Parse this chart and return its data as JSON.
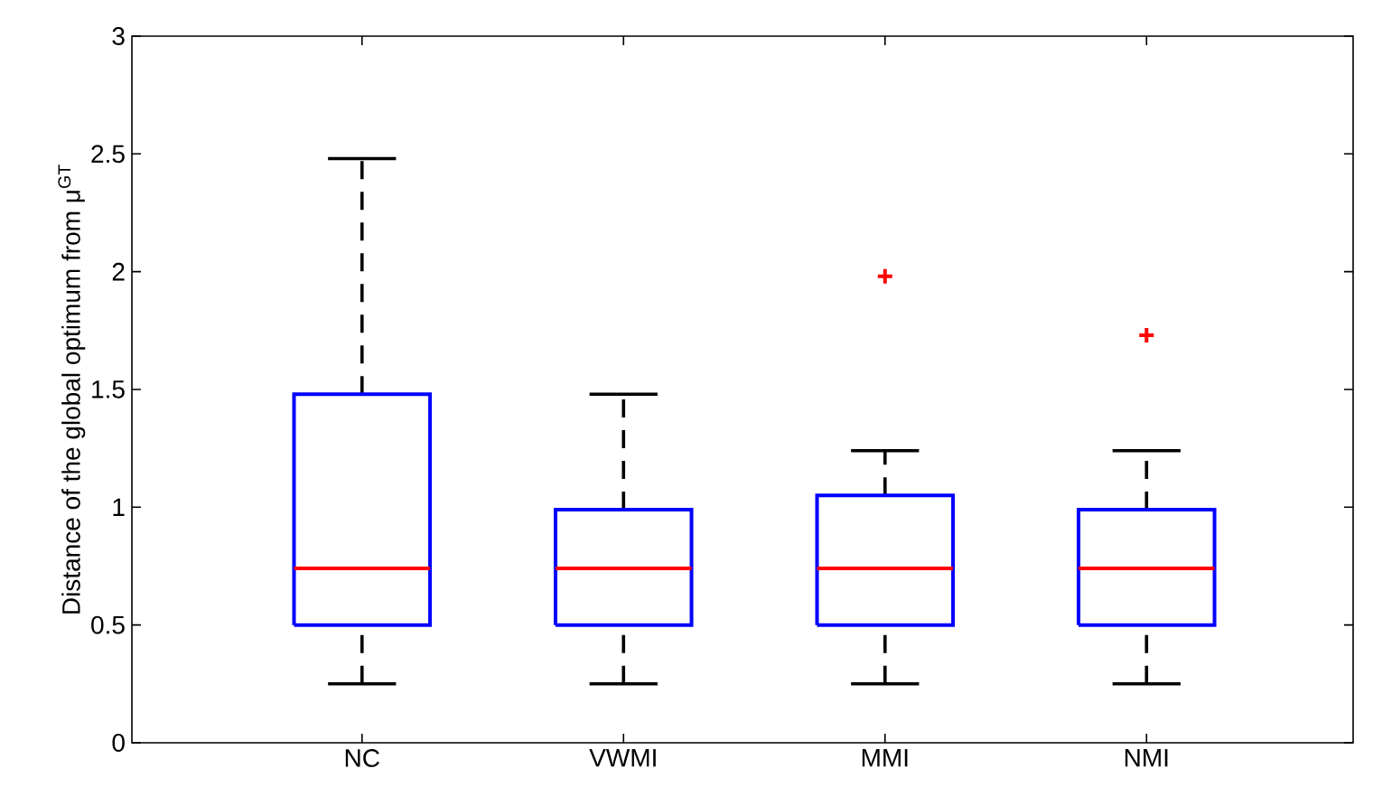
{
  "chart_data": {
    "type": "box",
    "ylabel": "Distance of the global optimum from μ$^{GT}$",
    "categories": [
      "NC",
      "VWMI",
      "MMI",
      "NMI"
    ],
    "series": [
      {
        "color": "#0000ff",
        "boxes": [
          {
            "low": 0.25,
            "q1": 0.5,
            "median": 0.74,
            "q3": 1.48,
            "high": 2.48
          },
          {
            "low": 0.25,
            "q1": 0.5,
            "median": 0.74,
            "q3": 0.99,
            "high": 1.48
          },
          {
            "low": 0.25,
            "q1": 0.5,
            "median": 0.74,
            "q3": 1.05,
            "high": 1.24,
            "outliers": [
              1.98
            ]
          },
          {
            "low": 0.25,
            "q1": 0.5,
            "median": 0.74,
            "q3": 0.99,
            "high": 1.24,
            "outliers": [
              1.73
            ]
          }
        ]
      }
    ],
    "ylim": [
      0,
      3
    ],
    "yticks": [
      0,
      0.5,
      1,
      1.5,
      2,
      2.5,
      3
    ],
    "grid": false,
    "marker": "cross",
    "line_style": "dashed"
  }
}
